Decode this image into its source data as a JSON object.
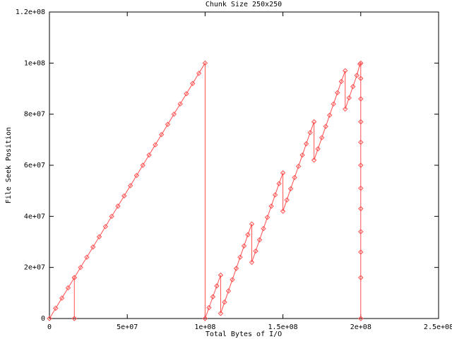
{
  "chart_data": {
    "type": "line",
    "title": "Chunk Size 250x250",
    "x_label": "Total Bytes of I/O",
    "y_label": "File Seek Position",
    "xlim": [
      0,
      250000000.0
    ],
    "ylim": [
      0,
      120000000.0
    ],
    "xticks": [
      0,
      {
        "value": 50000000.0,
        "label": "5e+07"
      },
      {
        "value": 100000000.0,
        "label": "1e+08"
      },
      {
        "value": 150000000.0,
        "label": "1.5e+08"
      },
      {
        "value": 200000000.0,
        "label": "2e+08"
      },
      {
        "value": 250000000.0,
        "label": "2.5e+08"
      }
    ],
    "yticks": [
      0,
      {
        "value": 20000000.0,
        "label": "2e+07"
      },
      {
        "value": 40000000.0,
        "label": "4e+07"
      },
      {
        "value": 60000000.0,
        "label": "6e+07"
      },
      {
        "value": 80000000.0,
        "label": "8e+07"
      },
      {
        "value": 100000000.0,
        "label": "1e+08"
      },
      {
        "value": 120000000.0,
        "label": "1.2e+08"
      }
    ],
    "grid": false,
    "series": [
      {
        "color": "#ff5050",
        "x": [
          0,
          4000000.0,
          8000000.0,
          12000000.0,
          16000000.0,
          16000000.0,
          16000000.0,
          20000000.0,
          24000000.0,
          28000000.0,
          32000000.0,
          36000000.0,
          40000000.0,
          44000000.0,
          48000000.0,
          52000000.0,
          56000000.0,
          60000000.0,
          64000000.0,
          68000000.0,
          72000000.0,
          76000000.0,
          80000000.0,
          84000000.0,
          88000000.0,
          92000000.0,
          96000000.0,
          100000000.0,
          100000000.0,
          102500000.0,
          105000000.0,
          107500000.0,
          110000000.0,
          110000000.0,
          112500000.0,
          115000000.0,
          117500000.0,
          120000000.0,
          122500000.0,
          125000000.0,
          127500000.0,
          130000000.0,
          130000000.0,
          132500000.0,
          135000000.0,
          137500000.0,
          140000000.0,
          142500000.0,
          145000000.0,
          147500000.0,
          150000000.0,
          150000000.0,
          152500000.0,
          155000000.0,
          157500000.0,
          160000000.0,
          162500000.0,
          165000000.0,
          167500000.0,
          170000000.0,
          170000000.0,
          172500000.0,
          175000000.0,
          177500000.0,
          180000000.0,
          182500000.0,
          185000000.0,
          187500000.0,
          190000000.0,
          190000000.0,
          192500000.0,
          195000000.0,
          197500000.0,
          199500000.0,
          200000000.0,
          200000000.0,
          200000000.0,
          200000000.0,
          200000000.0,
          200000000.0,
          200000000.0,
          200000000.0,
          200000000.0,
          200000000.0,
          200000000.0,
          200000000.0
        ],
        "values": [
          0,
          4000000.0,
          8000000.0,
          12000000.0,
          16000000.0,
          0,
          16000000.0,
          20000000.0,
          24000000.0,
          28000000.0,
          32000000.0,
          36000000.0,
          40000000.0,
          44000000.0,
          48000000.0,
          52000000.0,
          56000000.0,
          60000000.0,
          64000000.0,
          68000000.0,
          72000000.0,
          76000000.0,
          80000000.0,
          84000000.0,
          88000000.0,
          92000000.0,
          96000000.0,
          100000000.0,
          0,
          4250000.0,
          8500000.0,
          12750000.0,
          17000000.0,
          2000000.0,
          6400000.0,
          10800000.0,
          15200000.0,
          19600000.0,
          24000000.0,
          28400000.0,
          32800000.0,
          37000000.0,
          22000000.0,
          26400000.0,
          30800000.0,
          35200000.0,
          39600000.0,
          44000000.0,
          48400000.0,
          52800000.0,
          57000000.0,
          42000000.0,
          46400000.0,
          50800000.0,
          55200000.0,
          59600000.0,
          64000000.0,
          68400000.0,
          72800000.0,
          77000000.0,
          62000000.0,
          66400000.0,
          70800000.0,
          75200000.0,
          79600000.0,
          84000000.0,
          88400000.0,
          92800000.0,
          97000000.0,
          82000000.0,
          86400000.0,
          90800000.0,
          95200000.0,
          99600000.0,
          100000000.0,
          94000000.0,
          86000000.0,
          77000000.0,
          69000000.0,
          60000000.0,
          51000000.0,
          43000000.0,
          34000000.0,
          26000000.0,
          16000000.0,
          0
        ]
      }
    ]
  }
}
